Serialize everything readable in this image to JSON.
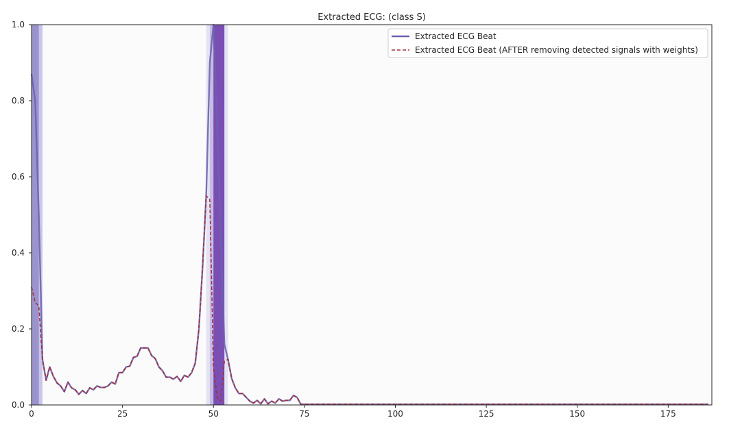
{
  "chart_data": {
    "type": "line",
    "title": "Extracted ECG: (class S)",
    "xlabel": "",
    "ylabel": "",
    "xlim": [
      0,
      187
    ],
    "ylim": [
      0,
      1.0
    ],
    "xticks": [
      0,
      25,
      50,
      75,
      100,
      125,
      150,
      175
    ],
    "yticks": [
      0.0,
      0.2,
      0.4,
      0.6,
      0.8,
      1.0
    ],
    "ytick_labels": [
      "0.0",
      "0.2",
      "0.4",
      "0.6",
      "0.8",
      "1.0"
    ],
    "grid": false,
    "legend_position": "top-right",
    "series": [
      {
        "name": "Extracted ECG Beat",
        "color": "#6a62ad",
        "style": "solid",
        "x": [
          0,
          1,
          2,
          3,
          4,
          5,
          6,
          7,
          8,
          9,
          10,
          11,
          12,
          13,
          14,
          15,
          16,
          17,
          18,
          19,
          20,
          21,
          22,
          23,
          24,
          25,
          26,
          27,
          28,
          29,
          30,
          31,
          32,
          33,
          34,
          35,
          36,
          37,
          38,
          39,
          40,
          41,
          42,
          43,
          44,
          45,
          46,
          47,
          48,
          49,
          50,
          51,
          52,
          53,
          54,
          55,
          56,
          57,
          58,
          59,
          60,
          61,
          62,
          63,
          64,
          65,
          66,
          67,
          68,
          69,
          70,
          71,
          72,
          73,
          74,
          186
        ],
        "y": [
          0.87,
          0.8,
          0.5,
          0.12,
          0.065,
          0.1,
          0.075,
          0.058,
          0.05,
          0.035,
          0.06,
          0.045,
          0.04,
          0.028,
          0.038,
          0.03,
          0.045,
          0.04,
          0.05,
          0.046,
          0.046,
          0.05,
          0.06,
          0.055,
          0.085,
          0.085,
          0.1,
          0.102,
          0.125,
          0.128,
          0.15,
          0.15,
          0.15,
          0.13,
          0.122,
          0.1,
          0.09,
          0.073,
          0.073,
          0.068,
          0.075,
          0.062,
          0.078,
          0.073,
          0.085,
          0.11,
          0.2,
          0.36,
          0.55,
          0.9,
          1.0,
          0.75,
          0.45,
          0.16,
          0.12,
          0.07,
          0.045,
          0.03,
          0.03,
          0.02,
          0.01,
          0.005,
          0.012,
          0.003,
          0.016,
          0.003,
          0.01,
          0.005,
          0.016,
          0.01,
          0.012,
          0.012,
          0.025,
          0.02,
          0.002,
          0.002
        ]
      },
      {
        "name": "Extracted ECG Beat (AFTER removing detected signals with weights)",
        "color": "#a3313d",
        "style": "dashed",
        "x": [
          0,
          1,
          2,
          3,
          4,
          5,
          6,
          7,
          8,
          9,
          10,
          11,
          12,
          13,
          14,
          15,
          16,
          17,
          18,
          19,
          20,
          21,
          22,
          23,
          24,
          25,
          26,
          27,
          28,
          29,
          30,
          31,
          32,
          33,
          34,
          35,
          36,
          37,
          38,
          39,
          40,
          41,
          42,
          43,
          44,
          45,
          46,
          47,
          48,
          49,
          50,
          51,
          52,
          53,
          54,
          55,
          56,
          57,
          58,
          59,
          60,
          61,
          62,
          63,
          64,
          65,
          66,
          67,
          68,
          69,
          70,
          71,
          72,
          73,
          74,
          186
        ],
        "y": [
          0.31,
          0.27,
          0.26,
          0.12,
          0.065,
          0.1,
          0.075,
          0.058,
          0.05,
          0.035,
          0.06,
          0.045,
          0.04,
          0.028,
          0.038,
          0.03,
          0.045,
          0.04,
          0.05,
          0.046,
          0.046,
          0.05,
          0.06,
          0.055,
          0.085,
          0.085,
          0.1,
          0.102,
          0.125,
          0.128,
          0.15,
          0.15,
          0.15,
          0.13,
          0.122,
          0.1,
          0.09,
          0.073,
          0.073,
          0.068,
          0.075,
          0.062,
          0.078,
          0.073,
          0.085,
          0.11,
          0.2,
          0.36,
          0.55,
          0.54,
          0.1,
          0.02,
          0.01,
          0.115,
          0.12,
          0.07,
          0.045,
          0.03,
          0.03,
          0.02,
          0.01,
          0.005,
          0.012,
          0.003,
          0.016,
          0.003,
          0.01,
          0.005,
          0.016,
          0.01,
          0.012,
          0.012,
          0.025,
          0.02,
          0.002,
          0.002
        ]
      }
    ],
    "highlight_bands": [
      {
        "x0": 0,
        "x1": 3,
        "color": "#c8c6ea"
      },
      {
        "x0": 0,
        "x1": 2,
        "color": "#9a93cc"
      },
      {
        "x0": 48,
        "x1": 54,
        "color": "#e4e2f3"
      },
      {
        "x0": 49,
        "x1": 53,
        "color": "#c6bbe3"
      },
      {
        "x0": 50,
        "x1": 53,
        "color": "#7a4fb4"
      }
    ]
  }
}
